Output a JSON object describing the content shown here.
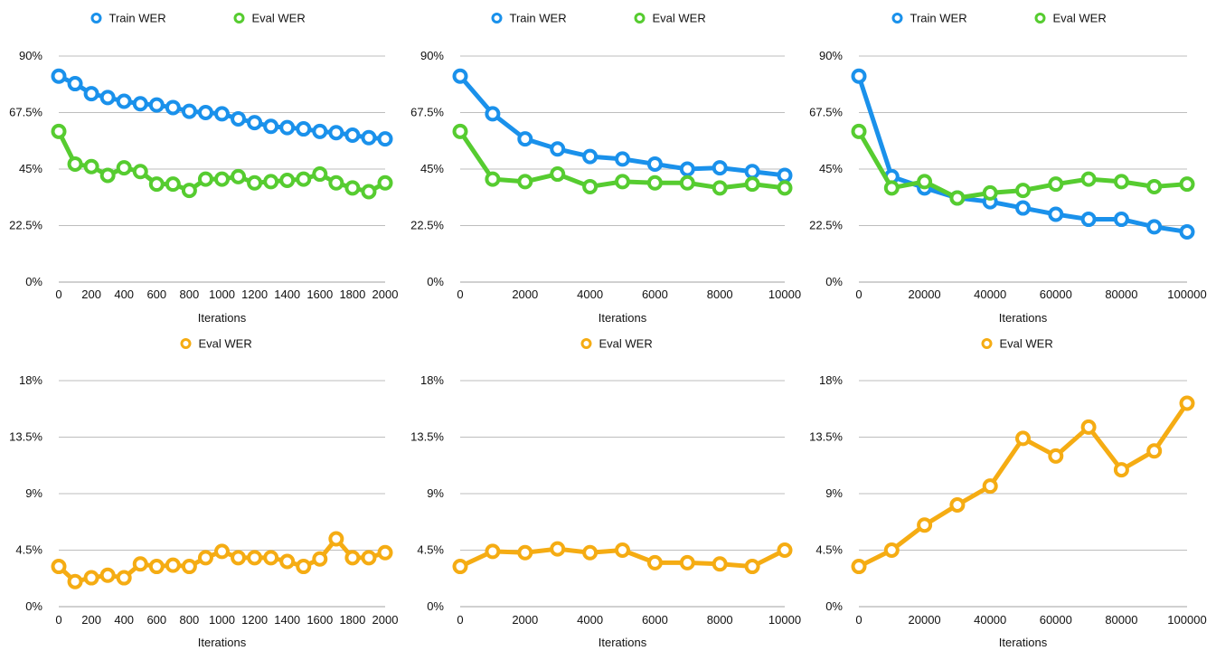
{
  "chart_data": [
    {
      "type": "line",
      "xlabel": "Iterations",
      "x": [
        0,
        100,
        200,
        300,
        400,
        500,
        600,
        700,
        800,
        900,
        1000,
        1100,
        1200,
        1300,
        1400,
        1500,
        1600,
        1700,
        1800,
        1900,
        2000
      ],
      "x_ticks": [
        "0",
        "200",
        "400",
        "600",
        "800",
        "1000",
        "1200",
        "1400",
        "1600",
        "1800",
        "2000"
      ],
      "y_ticks": [
        "0%",
        "22.5%",
        "45%",
        "67.5%",
        "90%"
      ],
      "ylim": [
        0,
        90
      ],
      "xlim": [
        0,
        2000
      ],
      "grid": true,
      "legend_position": "top",
      "series": [
        {
          "name": "Train WER",
          "color": "#1a91eb",
          "values": [
            82,
            79,
            75,
            73.5,
            72,
            71,
            70.5,
            69.5,
            68,
            67.5,
            67,
            65,
            63.5,
            62,
            61.5,
            61,
            60,
            59.5,
            58.5,
            57.5,
            57
          ]
        },
        {
          "name": "Eval WER",
          "color": "#56cc30",
          "values": [
            60,
            47,
            46,
            42.5,
            45.5,
            44,
            39,
            39,
            36.5,
            41,
            41,
            42,
            39.5,
            40,
            40.5,
            41,
            43,
            39.5,
            37.5,
            36,
            39.5
          ]
        }
      ]
    },
    {
      "type": "line",
      "xlabel": "Iterations",
      "x": [
        0,
        1000,
        2000,
        3000,
        4000,
        5000,
        6000,
        7000,
        8000,
        9000,
        10000
      ],
      "x_ticks": [
        "0",
        "2000",
        "4000",
        "6000",
        "8000",
        "10000"
      ],
      "y_ticks": [
        "0%",
        "22.5%",
        "45%",
        "67.5%",
        "90%"
      ],
      "ylim": [
        0,
        90
      ],
      "xlim": [
        0,
        10000
      ],
      "grid": true,
      "legend_position": "top",
      "series": [
        {
          "name": "Train WER",
          "color": "#1a91eb",
          "values": [
            82,
            67,
            57,
            53,
            50,
            49,
            47,
            45,
            45.5,
            44,
            42.5
          ]
        },
        {
          "name": "Eval WER",
          "color": "#56cc30",
          "values": [
            60,
            41,
            40,
            43,
            38,
            40,
            39.5,
            39.5,
            37.5,
            39,
            37.5
          ]
        }
      ]
    },
    {
      "type": "line",
      "xlabel": "Iterations",
      "x": [
        0,
        10000,
        20000,
        30000,
        40000,
        50000,
        60000,
        70000,
        80000,
        90000,
        100000
      ],
      "x_ticks": [
        "0",
        "20000",
        "40000",
        "60000",
        "80000",
        "100000"
      ],
      "y_ticks": [
        "0%",
        "22.5%",
        "45%",
        "67.5%",
        "90%"
      ],
      "ylim": [
        0,
        90
      ],
      "xlim": [
        0,
        100000
      ],
      "grid": true,
      "legend_position": "top",
      "series": [
        {
          "name": "Train WER",
          "color": "#1a91eb",
          "values": [
            82,
            42,
            37.5,
            33.5,
            32,
            29.5,
            27,
            25,
            25,
            22,
            20
          ]
        },
        {
          "name": "Eval WER",
          "color": "#56cc30",
          "values": [
            60,
            37.5,
            40,
            33.5,
            35.5,
            36.5,
            39,
            41,
            40,
            38,
            39
          ]
        }
      ]
    },
    {
      "type": "line",
      "xlabel": "Iterations",
      "x": [
        0,
        100,
        200,
        300,
        400,
        500,
        600,
        700,
        800,
        900,
        1000,
        1100,
        1200,
        1300,
        1400,
        1500,
        1600,
        1700,
        1800,
        1900,
        2000
      ],
      "x_ticks": [
        "0",
        "200",
        "400",
        "600",
        "800",
        "1000",
        "1200",
        "1400",
        "1600",
        "1800",
        "2000"
      ],
      "y_ticks": [
        "0%",
        "4.5%",
        "9%",
        "13.5%",
        "18%"
      ],
      "ylim": [
        0,
        18
      ],
      "xlim": [
        0,
        2000
      ],
      "grid": true,
      "legend_position": "top",
      "series": [
        {
          "name": "Eval WER",
          "color": "#f5ac13",
          "values": [
            3.2,
            2,
            2.3,
            2.5,
            2.3,
            3.4,
            3.2,
            3.3,
            3.2,
            3.9,
            4.4,
            3.9,
            3.9,
            3.9,
            3.6,
            3.2,
            3.8,
            5.4,
            3.9,
            3.9,
            4.3
          ]
        }
      ]
    },
    {
      "type": "line",
      "xlabel": "Iterations",
      "x": [
        0,
        1000,
        2000,
        3000,
        4000,
        5000,
        6000,
        7000,
        8000,
        9000,
        10000
      ],
      "x_ticks": [
        "0",
        "2000",
        "4000",
        "6000",
        "8000",
        "10000"
      ],
      "y_ticks": [
        "0%",
        "4.5%",
        "9%",
        "13.5%",
        "18%"
      ],
      "ylim": [
        0,
        18
      ],
      "xlim": [
        0,
        10000
      ],
      "grid": true,
      "legend_position": "top",
      "series": [
        {
          "name": "Eval WER",
          "color": "#f5ac13",
          "values": [
            3.2,
            4.4,
            4.3,
            4.6,
            4.3,
            4.5,
            3.5,
            3.5,
            3.4,
            3.2,
            4.5
          ]
        }
      ]
    },
    {
      "type": "line",
      "xlabel": "Iterations",
      "x": [
        0,
        10000,
        20000,
        30000,
        40000,
        50000,
        60000,
        70000,
        80000,
        90000,
        100000
      ],
      "x_ticks": [
        "0",
        "20000",
        "40000",
        "60000",
        "80000",
        "100000"
      ],
      "y_ticks": [
        "0%",
        "4.5%",
        "9%",
        "13.5%",
        "18%"
      ],
      "ylim": [
        0,
        18
      ],
      "xlim": [
        0,
        100000
      ],
      "grid": true,
      "legend_position": "top",
      "series": [
        {
          "name": "Eval WER",
          "color": "#f5ac13",
          "values": [
            3.2,
            4.5,
            6.5,
            8.1,
            9.6,
            13.4,
            12,
            14.3,
            10.9,
            12.4,
            16.2
          ]
        }
      ]
    }
  ]
}
